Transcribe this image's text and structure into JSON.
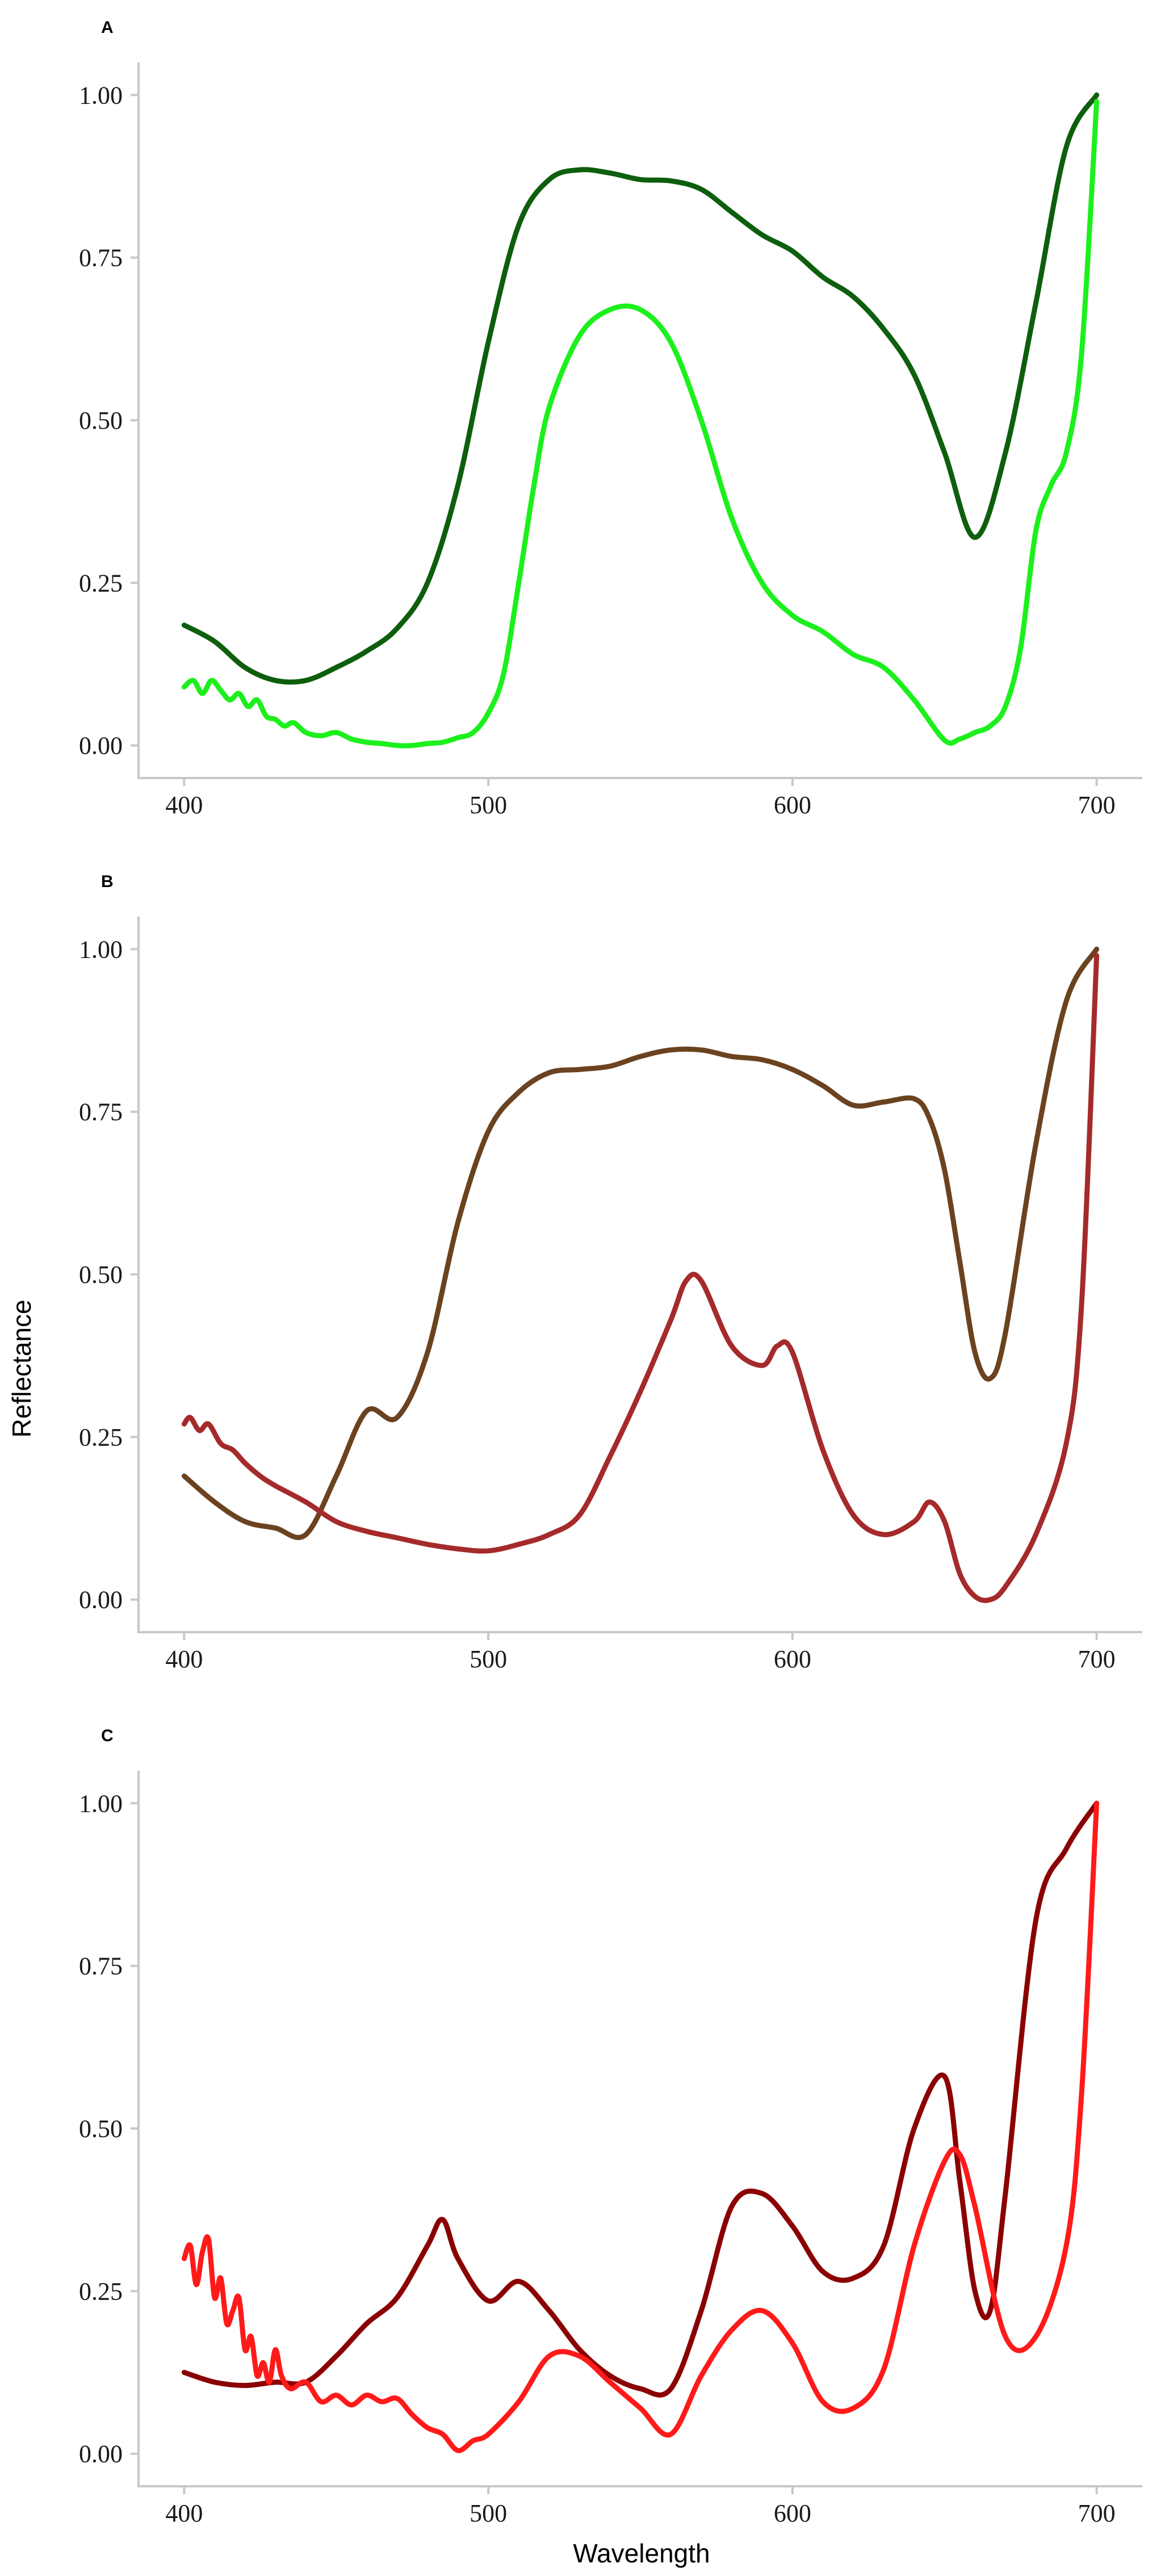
{
  "figure": {
    "ylabel": "Reflectance",
    "xlabel": "Wavelength"
  },
  "chart_data": [
    {
      "type": "line",
      "panel": "A",
      "xlim": [
        385,
        715
      ],
      "ylim": [
        -0.05,
        1.05
      ],
      "xticks": [
        400,
        500,
        600,
        700
      ],
      "yticks": [
        0,
        0.25,
        0.5,
        0.75,
        1.0
      ],
      "ytick_labels": [
        "0.00",
        "0.25",
        "0.50",
        "0.75",
        "1.00"
      ],
      "grid": false,
      "series": [
        {
          "color": "#0d5e0d",
          "points": [
            [
              400,
              0.185
            ],
            [
              410,
              0.16
            ],
            [
              420,
              0.12
            ],
            [
              430,
              0.1
            ],
            [
              440,
              0.1
            ],
            [
              450,
              0.12
            ],
            [
              460,
              0.145
            ],
            [
              470,
              0.18
            ],
            [
              480,
              0.25
            ],
            [
              490,
              0.4
            ],
            [
              500,
              0.62
            ],
            [
              510,
              0.8
            ],
            [
              520,
              0.87
            ],
            [
              530,
              0.885
            ],
            [
              540,
              0.88
            ],
            [
              550,
              0.87
            ],
            [
              560,
              0.868
            ],
            [
              570,
              0.855
            ],
            [
              580,
              0.82
            ],
            [
              590,
              0.785
            ],
            [
              600,
              0.76
            ],
            [
              610,
              0.72
            ],
            [
              620,
              0.69
            ],
            [
              630,
              0.64
            ],
            [
              640,
              0.57
            ],
            [
              650,
              0.45
            ],
            [
              660,
              0.32
            ],
            [
              670,
              0.45
            ],
            [
              680,
              0.68
            ],
            [
              690,
              0.92
            ],
            [
              700,
              1.0
            ]
          ]
        },
        {
          "color": "#1cf01c",
          "points": [
            [
              400,
              0.09
            ],
            [
              403,
              0.1
            ],
            [
              406,
              0.08
            ],
            [
              409,
              0.1
            ],
            [
              412,
              0.085
            ],
            [
              415,
              0.07
            ],
            [
              418,
              0.08
            ],
            [
              421,
              0.06
            ],
            [
              424,
              0.07
            ],
            [
              427,
              0.045
            ],
            [
              430,
              0.04
            ],
            [
              433,
              0.03
            ],
            [
              436,
              0.035
            ],
            [
              440,
              0.02
            ],
            [
              445,
              0.015
            ],
            [
              450,
              0.02
            ],
            [
              455,
              0.01
            ],
            [
              460,
              0.005
            ],
            [
              465,
              0.003
            ],
            [
              470,
              0.0
            ],
            [
              475,
              0.0
            ],
            [
              480,
              0.003
            ],
            [
              485,
              0.005
            ],
            [
              490,
              0.012
            ],
            [
              495,
              0.02
            ],
            [
              500,
              0.05
            ],
            [
              505,
              0.11
            ],
            [
              510,
              0.25
            ],
            [
              515,
              0.4
            ],
            [
              520,
              0.52
            ],
            [
              530,
              0.63
            ],
            [
              540,
              0.67
            ],
            [
              550,
              0.67
            ],
            [
              560,
              0.62
            ],
            [
              570,
              0.5
            ],
            [
              580,
              0.35
            ],
            [
              590,
              0.25
            ],
            [
              600,
              0.2
            ],
            [
              610,
              0.175
            ],
            [
              620,
              0.14
            ],
            [
              630,
              0.12
            ],
            [
              640,
              0.07
            ],
            [
              650,
              0.008
            ],
            [
              655,
              0.01
            ],
            [
              660,
              0.02
            ],
            [
              665,
              0.03
            ],
            [
              670,
              0.06
            ],
            [
              675,
              0.15
            ],
            [
              680,
              0.33
            ],
            [
              685,
              0.4
            ],
            [
              690,
              0.45
            ],
            [
              695,
              0.6
            ],
            [
              700,
              0.99
            ]
          ]
        }
      ]
    },
    {
      "type": "line",
      "panel": "B",
      "xlim": [
        385,
        715
      ],
      "ylim": [
        -0.05,
        1.05
      ],
      "xticks": [
        400,
        500,
        600,
        700
      ],
      "yticks": [
        0,
        0.25,
        0.5,
        0.75,
        1.0
      ],
      "ytick_labels": [
        "0.00",
        "0.25",
        "0.50",
        "0.75",
        "1.00"
      ],
      "grid": false,
      "series": [
        {
          "color": "#6b4220",
          "points": [
            [
              400,
              0.19
            ],
            [
              410,
              0.15
            ],
            [
              420,
              0.12
            ],
            [
              430,
              0.11
            ],
            [
              440,
              0.1
            ],
            [
              450,
              0.19
            ],
            [
              460,
              0.29
            ],
            [
              470,
              0.28
            ],
            [
              480,
              0.38
            ],
            [
              490,
              0.58
            ],
            [
              500,
              0.72
            ],
            [
              510,
              0.78
            ],
            [
              520,
              0.81
            ],
            [
              530,
              0.815
            ],
            [
              540,
              0.82
            ],
            [
              550,
              0.835
            ],
            [
              560,
              0.845
            ],
            [
              570,
              0.845
            ],
            [
              580,
              0.835
            ],
            [
              590,
              0.83
            ],
            [
              600,
              0.815
            ],
            [
              610,
              0.79
            ],
            [
              620,
              0.76
            ],
            [
              630,
              0.765
            ],
            [
              640,
              0.77
            ],
            [
              645,
              0.74
            ],
            [
              650,
              0.66
            ],
            [
              655,
              0.52
            ],
            [
              660,
              0.38
            ],
            [
              665,
              0.34
            ],
            [
              670,
              0.41
            ],
            [
              680,
              0.7
            ],
            [
              690,
              0.92
            ],
            [
              700,
              1.0
            ]
          ]
        },
        {
          "color": "#a52a2a",
          "points": [
            [
              400,
              0.27
            ],
            [
              402,
              0.28
            ],
            [
              405,
              0.26
            ],
            [
              408,
              0.27
            ],
            [
              412,
              0.24
            ],
            [
              416,
              0.23
            ],
            [
              420,
              0.21
            ],
            [
              425,
              0.19
            ],
            [
              430,
              0.175
            ],
            [
              440,
              0.15
            ],
            [
              450,
              0.12
            ],
            [
              460,
              0.105
            ],
            [
              470,
              0.095
            ],
            [
              480,
              0.085
            ],
            [
              490,
              0.078
            ],
            [
              500,
              0.075
            ],
            [
              510,
              0.085
            ],
            [
              520,
              0.1
            ],
            [
              530,
              0.13
            ],
            [
              540,
              0.22
            ],
            [
              550,
              0.32
            ],
            [
              560,
              0.43
            ],
            [
              565,
              0.49
            ],
            [
              570,
              0.49
            ],
            [
              580,
              0.39
            ],
            [
              590,
              0.36
            ],
            [
              595,
              0.39
            ],
            [
              600,
              0.38
            ],
            [
              610,
              0.23
            ],
            [
              620,
              0.13
            ],
            [
              630,
              0.1
            ],
            [
              640,
              0.12
            ],
            [
              645,
              0.15
            ],
            [
              650,
              0.12
            ],
            [
              655,
              0.04
            ],
            [
              660,
              0.005
            ],
            [
              665,
              0.0
            ],
            [
              670,
              0.02
            ],
            [
              680,
              0.1
            ],
            [
              690,
              0.24
            ],
            [
              695,
              0.45
            ],
            [
              700,
              0.99
            ]
          ]
        }
      ]
    },
    {
      "type": "line",
      "panel": "C",
      "xlim": [
        385,
        715
      ],
      "ylim": [
        -0.05,
        1.05
      ],
      "xticks": [
        400,
        500,
        600,
        700
      ],
      "yticks": [
        0,
        0.25,
        0.5,
        0.75,
        1.0
      ],
      "ytick_labels": [
        "0.00",
        "0.25",
        "0.50",
        "0.75",
        "1.00"
      ],
      "grid": false,
      "series": [
        {
          "color": "#8b0000",
          "points": [
            [
              400,
              0.125
            ],
            [
              410,
              0.11
            ],
            [
              420,
              0.105
            ],
            [
              430,
              0.11
            ],
            [
              440,
              0.11
            ],
            [
              450,
              0.15
            ],
            [
              460,
              0.2
            ],
            [
              470,
              0.24
            ],
            [
              480,
              0.32
            ],
            [
              485,
              0.36
            ],
            [
              490,
              0.3
            ],
            [
              500,
              0.235
            ],
            [
              510,
              0.265
            ],
            [
              520,
              0.22
            ],
            [
              530,
              0.16
            ],
            [
              540,
              0.12
            ],
            [
              550,
              0.1
            ],
            [
              560,
              0.1
            ],
            [
              570,
              0.22
            ],
            [
              580,
              0.38
            ],
            [
              590,
              0.4
            ],
            [
              600,
              0.35
            ],
            [
              610,
              0.28
            ],
            [
              620,
              0.27
            ],
            [
              630,
              0.32
            ],
            [
              640,
              0.5
            ],
            [
              650,
              0.58
            ],
            [
              655,
              0.42
            ],
            [
              660,
              0.25
            ],
            [
              665,
              0.22
            ],
            [
              670,
              0.4
            ],
            [
              680,
              0.82
            ],
            [
              690,
              0.93
            ],
            [
              700,
              1.0
            ]
          ]
        },
        {
          "color": "#ff1a1a",
          "points": [
            [
              400,
              0.3
            ],
            [
              402,
              0.32
            ],
            [
              404,
              0.26
            ],
            [
              406,
              0.31
            ],
            [
              408,
              0.33
            ],
            [
              410,
              0.24
            ],
            [
              412,
              0.27
            ],
            [
              414,
              0.2
            ],
            [
              416,
              0.22
            ],
            [
              418,
              0.24
            ],
            [
              420,
              0.16
            ],
            [
              422,
              0.18
            ],
            [
              424,
              0.12
            ],
            [
              426,
              0.14
            ],
            [
              428,
              0.11
            ],
            [
              430,
              0.16
            ],
            [
              432,
              0.12
            ],
            [
              435,
              0.1
            ],
            [
              440,
              0.11
            ],
            [
              445,
              0.08
            ],
            [
              450,
              0.09
            ],
            [
              455,
              0.075
            ],
            [
              460,
              0.09
            ],
            [
              465,
              0.08
            ],
            [
              470,
              0.085
            ],
            [
              475,
              0.06
            ],
            [
              480,
              0.04
            ],
            [
              485,
              0.03
            ],
            [
              490,
              0.005
            ],
            [
              495,
              0.02
            ],
            [
              500,
              0.03
            ],
            [
              510,
              0.08
            ],
            [
              520,
              0.15
            ],
            [
              530,
              0.15
            ],
            [
              540,
              0.11
            ],
            [
              550,
              0.07
            ],
            [
              560,
              0.03
            ],
            [
              570,
              0.12
            ],
            [
              580,
              0.19
            ],
            [
              590,
              0.22
            ],
            [
              600,
              0.17
            ],
            [
              610,
              0.08
            ],
            [
              620,
              0.07
            ],
            [
              630,
              0.13
            ],
            [
              640,
              0.32
            ],
            [
              650,
              0.45
            ],
            [
              655,
              0.46
            ],
            [
              660,
              0.38
            ],
            [
              670,
              0.18
            ],
            [
              680,
              0.18
            ],
            [
              690,
              0.32
            ],
            [
              695,
              0.55
            ],
            [
              700,
              1.0
            ]
          ]
        }
      ]
    }
  ]
}
